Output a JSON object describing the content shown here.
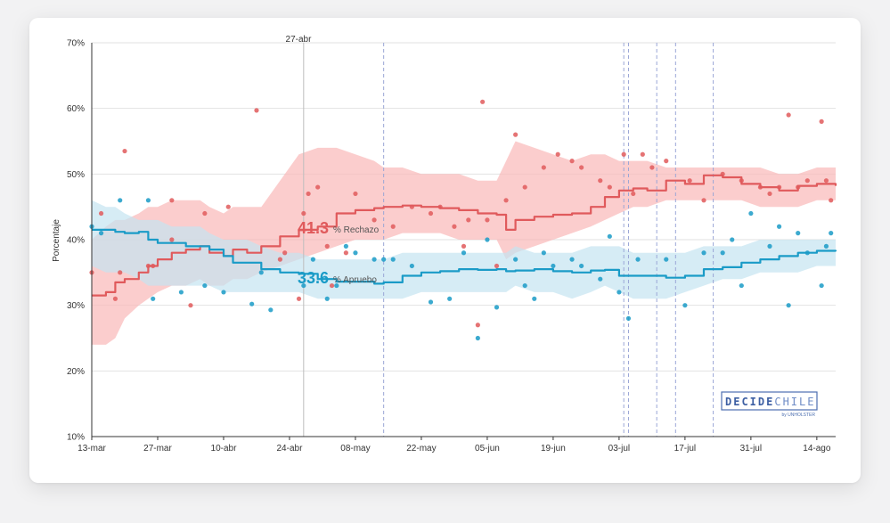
{
  "chart_data": {
    "type": "line",
    "ylabel": "Porcentaje",
    "ylim": [
      10,
      70
    ],
    "yticks": [
      "10%",
      "20%",
      "30%",
      "40%",
      "50%",
      "60%",
      "70%"
    ],
    "xlim": [
      0,
      158
    ],
    "xticks": [
      {
        "label": "13-mar",
        "x": 0
      },
      {
        "label": "27-mar",
        "x": 14
      },
      {
        "label": "10-abr",
        "x": 28
      },
      {
        "label": "24-abr",
        "x": 42
      },
      {
        "label": "08-may",
        "x": 56
      },
      {
        "label": "22-may",
        "x": 70
      },
      {
        "label": "05-jun",
        "x": 84
      },
      {
        "label": "19-jun",
        "x": 98
      },
      {
        "label": "03-jul",
        "x": 112
      },
      {
        "label": "17-jul",
        "x": 126
      },
      {
        "label": "31-jul",
        "x": 140
      },
      {
        "label": "14-ago",
        "x": 154
      }
    ],
    "event_line": {
      "label": "27-abr",
      "x": 45
    },
    "dashed_lines_x": [
      62,
      113,
      114,
      120,
      124,
      132
    ],
    "annotations": {
      "rechazo": {
        "value": "41.3",
        "text": "% Rechazo"
      },
      "apruebo": {
        "value": "33.6",
        "text": "% Apruebo"
      }
    },
    "series": [
      {
        "name": "Rechazo",
        "color": "#e05a5c",
        "band_color": "#f9b8b8",
        "x": [
          0,
          3,
          5,
          7,
          10,
          12,
          14,
          17,
          20,
          23,
          25,
          28,
          30,
          33,
          36,
          40,
          44,
          48,
          52,
          56,
          60,
          62,
          66,
          70,
          74,
          78,
          82,
          86,
          88,
          90,
          94,
          98,
          102,
          106,
          109,
          112,
          115,
          118,
          122,
          126,
          130,
          134,
          138,
          142,
          146,
          150,
          154,
          158
        ],
        "line": [
          31.5,
          32,
          33.5,
          34,
          35,
          36,
          37,
          38,
          38.5,
          39,
          38,
          37.5,
          38.5,
          38,
          39,
          40.5,
          41.5,
          42,
          44,
          44.5,
          44.8,
          45,
          45.2,
          45,
          44.8,
          44.5,
          44,
          43.8,
          41.5,
          43,
          43.5,
          43.8,
          44,
          45,
          46.5,
          47.5,
          47.8,
          47.5,
          49,
          48.5,
          49.8,
          49.5,
          48.5,
          48,
          47.5,
          48.2,
          48.5,
          48.2
        ],
        "upper": [
          40,
          42,
          43,
          43,
          44,
          45,
          45,
          46,
          46,
          46,
          45,
          44,
          45,
          45,
          45,
          49,
          53,
          54,
          54,
          53,
          52,
          51,
          51,
          50,
          50,
          50,
          49,
          49,
          52,
          55,
          54,
          53,
          52,
          53,
          53,
          52,
          52,
          52,
          51,
          51,
          51,
          51,
          51,
          51,
          50,
          50,
          51,
          51
        ],
        "lower": [
          24,
          24,
          25,
          28,
          30,
          31,
          32,
          33,
          33,
          34,
          33,
          33,
          34,
          34,
          35,
          36,
          37,
          38,
          39,
          40,
          40,
          40,
          41,
          41,
          41,
          40,
          40,
          40,
          37,
          38,
          39,
          40,
          41,
          42,
          43,
          44,
          45,
          45,
          46,
          46,
          46,
          46,
          46,
          45,
          45,
          45,
          46,
          46
        ],
        "points": [
          [
            0,
            35
          ],
          [
            2,
            44
          ],
          [
            5,
            31
          ],
          [
            6,
            35
          ],
          [
            7,
            53.5
          ],
          [
            12,
            36
          ],
          [
            13,
            36
          ],
          [
            17,
            46
          ],
          [
            17,
            40
          ],
          [
            21,
            30
          ],
          [
            24,
            44
          ],
          [
            29,
            45
          ],
          [
            35,
            59.7
          ],
          [
            40,
            37
          ],
          [
            41,
            38
          ],
          [
            44,
            31
          ],
          [
            45,
            44
          ],
          [
            46,
            47
          ],
          [
            48,
            48
          ],
          [
            50,
            39
          ],
          [
            51,
            33
          ],
          [
            54,
            38
          ],
          [
            56,
            47
          ],
          [
            60,
            43
          ],
          [
            64,
            42
          ],
          [
            68,
            45
          ],
          [
            72,
            44
          ],
          [
            74,
            45
          ],
          [
            77,
            42
          ],
          [
            79,
            39
          ],
          [
            80,
            43
          ],
          [
            82,
            27
          ],
          [
            83,
            61
          ],
          [
            84,
            43
          ],
          [
            86,
            36
          ],
          [
            88,
            46
          ],
          [
            90,
            56
          ],
          [
            92,
            48
          ],
          [
            96,
            51
          ],
          [
            99,
            53
          ],
          [
            102,
            52
          ],
          [
            104,
            51
          ],
          [
            108,
            49
          ],
          [
            110,
            48
          ],
          [
            113,
            53
          ],
          [
            115,
            47
          ],
          [
            117,
            53
          ],
          [
            119,
            51
          ],
          [
            122,
            52
          ],
          [
            127,
            49
          ],
          [
            130,
            46
          ],
          [
            134,
            50
          ],
          [
            138,
            49
          ],
          [
            142,
            48
          ],
          [
            144,
            47
          ],
          [
            146,
            48
          ],
          [
            148,
            59
          ],
          [
            150,
            48
          ],
          [
            152,
            49
          ],
          [
            155,
            58
          ],
          [
            156,
            49
          ],
          [
            157,
            46
          ]
        ]
      },
      {
        "name": "Apruebo",
        "color": "#1a9bc7",
        "band_color": "#c5e4f1",
        "x": [
          0,
          3,
          5,
          7,
          10,
          12,
          14,
          17,
          20,
          23,
          25,
          28,
          30,
          33,
          36,
          40,
          44,
          48,
          52,
          56,
          60,
          62,
          66,
          70,
          74,
          78,
          82,
          86,
          88,
          90,
          94,
          98,
          102,
          106,
          109,
          112,
          115,
          118,
          122,
          126,
          130,
          134,
          138,
          142,
          146,
          150,
          154,
          158
        ],
        "line": [
          41.5,
          41.5,
          41.2,
          41,
          41.2,
          40,
          39.5,
          39.5,
          39,
          39,
          38.5,
          37.5,
          36.5,
          36.5,
          35.5,
          35,
          34.8,
          34,
          33.6,
          33.6,
          33.3,
          33.5,
          34.5,
          35,
          35.2,
          35.5,
          35.4,
          35.5,
          35.2,
          35.3,
          35.5,
          35.2,
          35,
          35.3,
          35.4,
          34.5,
          34.5,
          34.5,
          34.2,
          34.5,
          35.5,
          35.8,
          36.5,
          37,
          37.5,
          38,
          38.3,
          38.2
        ],
        "upper": [
          46,
          45,
          45,
          44,
          43,
          43,
          43,
          42,
          42,
          42,
          41,
          40,
          40,
          40,
          39,
          38,
          38,
          37,
          37,
          37,
          37,
          37,
          38,
          38,
          38,
          38,
          38,
          38,
          38,
          39,
          38,
          38,
          38,
          39,
          39,
          39,
          38,
          38,
          38,
          38,
          39,
          39,
          39,
          40,
          40,
          40,
          40,
          40
        ],
        "lower": [
          36,
          35,
          35,
          35,
          34,
          33,
          33,
          33,
          33,
          33,
          33,
          32,
          32,
          32,
          32,
          32,
          32,
          31,
          31,
          31,
          31,
          31,
          31,
          32,
          32,
          32,
          32,
          32,
          32,
          33,
          32,
          32,
          31,
          32,
          33,
          32,
          31,
          31,
          31,
          32,
          33,
          34,
          34,
          35,
          35,
          35,
          36,
          36
        ],
        "points": [
          [
            0,
            42
          ],
          [
            2,
            41
          ],
          [
            6,
            46
          ],
          [
            12,
            46
          ],
          [
            13,
            31
          ],
          [
            19,
            32
          ],
          [
            24,
            33
          ],
          [
            28,
            32
          ],
          [
            34,
            30.2
          ],
          [
            36,
            35
          ],
          [
            38,
            29.3
          ],
          [
            45,
            33
          ],
          [
            47,
            37
          ],
          [
            50,
            31
          ],
          [
            52,
            33
          ],
          [
            54,
            39
          ],
          [
            56,
            38
          ],
          [
            60,
            37
          ],
          [
            62,
            37
          ],
          [
            64,
            37
          ],
          [
            68,
            36
          ],
          [
            72,
            30.5
          ],
          [
            76,
            31
          ],
          [
            79,
            38
          ],
          [
            82,
            25
          ],
          [
            84,
            40
          ],
          [
            86,
            29.7
          ],
          [
            90,
            37
          ],
          [
            92,
            33
          ],
          [
            94,
            31
          ],
          [
            96,
            38
          ],
          [
            98,
            36
          ],
          [
            102,
            37
          ],
          [
            104,
            36
          ],
          [
            108,
            34
          ],
          [
            110,
            40.5
          ],
          [
            112,
            32
          ],
          [
            114,
            28
          ],
          [
            116,
            37
          ],
          [
            122,
            37
          ],
          [
            126,
            30
          ],
          [
            130,
            38
          ],
          [
            134,
            38
          ],
          [
            136,
            40
          ],
          [
            138,
            33
          ],
          [
            140,
            44
          ],
          [
            144,
            39
          ],
          [
            146,
            42
          ],
          [
            148,
            30
          ],
          [
            150,
            41
          ],
          [
            152,
            38
          ],
          [
            155,
            33
          ],
          [
            156,
            39
          ],
          [
            157,
            41
          ]
        ]
      }
    ]
  },
  "branding": {
    "logo_main_bold": "DECIDE",
    "logo_main_light": "CHILE",
    "logo_sub": "by UNHOLSTER"
  }
}
